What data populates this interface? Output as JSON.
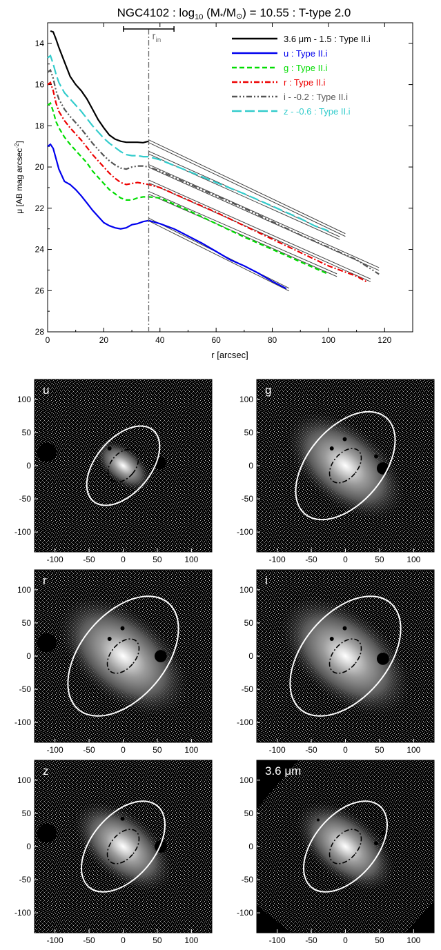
{
  "chart_data": [
    {
      "type": "line",
      "title_parts": {
        "pre": "NGC4102 : log",
        "sub": "10",
        "mid": " (M",
        "star": "*",
        "slash": "/M",
        "sun": "⊙",
        "post": ") = 10.55 : T-type 2.0"
      },
      "xlabel": "r [arcsec]",
      "ylabel": "μ [AB mag arcsec",
      "ylabel_exp": "-2",
      "ylabel_close": "]",
      "xlim": [
        0,
        130
      ],
      "ylim": [
        28,
        13
      ],
      "x_ticks": [
        "0",
        "20",
        "40",
        "60",
        "80",
        "100",
        "120"
      ],
      "y_ticks": [
        "14",
        "16",
        "18",
        "20",
        "22",
        "24",
        "26",
        "28"
      ],
      "rin_label": "r",
      "rin_sub": "in",
      "rin_value": 36,
      "rin_error": [
        27,
        45
      ],
      "legend_position": "top-right",
      "series": [
        {
          "name": "3.6 μm - 1.5 : Type II.i",
          "color": "#000000",
          "dash": "solid",
          "x": [
            1,
            2,
            3,
            4,
            6,
            8,
            10,
            12,
            14,
            16,
            18,
            20,
            22,
            24,
            26,
            28,
            30,
            32,
            34,
            36
          ],
          "y": [
            13.4,
            13.45,
            13.8,
            14.2,
            14.9,
            15.6,
            16.0,
            16.3,
            16.7,
            17.2,
            17.7,
            18.1,
            18.45,
            18.65,
            18.75,
            18.8,
            18.8,
            18.8,
            18.82,
            18.75
          ],
          "fit_x": [
            36,
            106
          ],
          "fit_y": [
            18.75,
            23.3
          ]
        },
        {
          "name": "u : Type II.i",
          "color": "#0000ee",
          "dash": "solid",
          "x": [
            0,
            1,
            2,
            3,
            4,
            6,
            8,
            10,
            12,
            14,
            16,
            18,
            20,
            22,
            24,
            26,
            28,
            30,
            32,
            34,
            36,
            40,
            45,
            50,
            55,
            60,
            65,
            70,
            75,
            80,
            85
          ],
          "y": [
            19.0,
            18.9,
            19.1,
            19.6,
            20.1,
            20.7,
            20.85,
            21.1,
            21.4,
            21.75,
            22.1,
            22.4,
            22.7,
            22.85,
            22.95,
            23.0,
            22.95,
            22.8,
            22.75,
            22.65,
            22.6,
            22.75,
            23.0,
            23.35,
            23.7,
            24.1,
            24.5,
            24.8,
            25.15,
            25.55,
            25.9
          ],
          "fit_x": [
            36,
            86
          ],
          "fit_y": [
            22.55,
            25.95
          ]
        },
        {
          "name": "g : Type II.i",
          "color": "#00dd00",
          "dash": "dash",
          "x": [
            0,
            1,
            2,
            3,
            4,
            6,
            8,
            10,
            12,
            14,
            16,
            18,
            20,
            22,
            24,
            26,
            28,
            30,
            32,
            34,
            36,
            40,
            50,
            60,
            70,
            80,
            90,
            100
          ],
          "y": [
            17.0,
            16.9,
            17.3,
            17.8,
            18.1,
            18.55,
            18.9,
            19.2,
            19.5,
            19.8,
            20.2,
            20.5,
            20.8,
            21.1,
            21.3,
            21.5,
            21.6,
            21.6,
            21.5,
            21.45,
            21.45,
            21.5,
            22.1,
            22.75,
            23.4,
            24.0,
            24.6,
            25.2
          ],
          "fit_x": [
            36,
            103
          ],
          "fit_y": [
            21.25,
            25.25
          ]
        },
        {
          "name": "r : Type II.i",
          "color": "#ee0000",
          "dash": "dashdot",
          "x": [
            0,
            1,
            2,
            3,
            4,
            6,
            8,
            10,
            12,
            14,
            16,
            18,
            20,
            22,
            24,
            26,
            28,
            30,
            32,
            34,
            36,
            40,
            50,
            60,
            70,
            80,
            90,
            100,
            110,
            114
          ],
          "y": [
            16.0,
            15.9,
            16.3,
            16.9,
            17.3,
            17.75,
            18.1,
            18.4,
            18.7,
            19.05,
            19.4,
            19.7,
            20.0,
            20.3,
            20.55,
            20.75,
            20.85,
            20.8,
            20.75,
            20.8,
            20.85,
            21.0,
            21.6,
            22.2,
            22.85,
            23.5,
            24.15,
            24.8,
            25.3,
            25.6
          ],
          "fit_x": [
            36,
            115
          ],
          "fit_y": [
            20.7,
            25.5
          ]
        },
        {
          "name": "i - -0.2 : Type II.i",
          "color": "#555555",
          "dash": "dashdotdot",
          "x": [
            0,
            1,
            2,
            3,
            4,
            6,
            8,
            10,
            12,
            14,
            16,
            18,
            20,
            22,
            24,
            26,
            28,
            30,
            32,
            34,
            36,
            40,
            50,
            60,
            70,
            80,
            90,
            100,
            110,
            118
          ],
          "y": [
            15.4,
            15.3,
            15.7,
            16.3,
            16.7,
            17.2,
            17.55,
            17.85,
            18.15,
            18.5,
            18.85,
            19.15,
            19.45,
            19.7,
            19.9,
            20.05,
            20.1,
            20.0,
            19.95,
            19.95,
            20.0,
            20.2,
            20.8,
            21.4,
            22.0,
            22.65,
            23.3,
            23.9,
            24.5,
            25.2
          ],
          "fit_x": [
            36,
            118
          ],
          "fit_y": [
            19.95,
            24.95
          ]
        },
        {
          "name": "z - -0.6 : Type II.i",
          "color": "#33cccc",
          "dash": "longdash",
          "x": [
            0,
            1,
            2,
            3,
            4,
            6,
            8,
            10,
            12,
            14,
            16,
            18,
            20,
            22,
            24,
            26,
            28,
            30,
            32,
            34,
            36,
            40,
            50,
            60,
            70,
            80,
            90,
            95,
            100
          ],
          "y": [
            14.7,
            14.6,
            15.0,
            15.5,
            15.9,
            16.4,
            16.7,
            17.0,
            17.3,
            17.65,
            18.0,
            18.3,
            18.6,
            18.85,
            19.05,
            19.25,
            19.4,
            19.45,
            19.45,
            19.5,
            19.5,
            19.65,
            20.2,
            20.75,
            21.3,
            21.9,
            22.5,
            22.85,
            23.1
          ],
          "fit_x": [
            36,
            104
          ],
          "fit_y": [
            19.3,
            23.45
          ]
        }
      ]
    },
    {
      "type": "heatmap",
      "panels": [
        {
          "label": "u",
          "outer": {
            "a": 70,
            "b": 40
          },
          "inner": {
            "a": 28,
            "b": 18
          },
          "pa": 40,
          "masks": [
            {
              "x": -112,
              "y": 20,
              "r": 14
            },
            {
              "x": 54,
              "y": 4,
              "r": 9
            },
            {
              "x": -20,
              "y": 26,
              "r": 3
            }
          ]
        },
        {
          "label": "g",
          "outer": {
            "a": 95,
            "b": 55
          },
          "inner": {
            "a": 30,
            "b": 18
          },
          "pa": 40,
          "masks": [
            {
              "x": 55,
              "y": -4,
              "r": 9
            },
            {
              "x": -1,
              "y": 40,
              "r": 3
            },
            {
              "x": -20,
              "y": 26,
              "r": 3
            },
            {
              "x": 45,
              "y": 14,
              "r": 3
            }
          ]
        },
        {
          "label": "r",
          "outer": {
            "a": 105,
            "b": 62
          },
          "inner": {
            "a": 30,
            "b": 18
          },
          "pa": 40,
          "masks": [
            {
              "x": -112,
              "y": 20,
              "r": 14
            },
            {
              "x": 55,
              "y": 0,
              "r": 9
            },
            {
              "x": -1,
              "y": 42,
              "r": 3
            },
            {
              "x": -20,
              "y": 26,
              "r": 3
            }
          ]
        },
        {
          "label": "i",
          "outer": {
            "a": 105,
            "b": 62
          },
          "inner": {
            "a": 30,
            "b": 18
          },
          "pa": 40,
          "masks": [
            {
              "x": 55,
              "y": -4,
              "r": 9
            },
            {
              "x": -1,
              "y": 42,
              "r": 3
            },
            {
              "x": -20,
              "y": 26,
              "r": 3
            }
          ]
        },
        {
          "label": "z",
          "outer": {
            "a": 80,
            "b": 46
          },
          "inner": {
            "a": 30,
            "b": 18
          },
          "pa": 40,
          "masks": [
            {
              "x": -112,
              "y": 20,
              "r": 14
            },
            {
              "x": 55,
              "y": 0,
              "r": 9
            },
            {
              "x": -1,
              "y": 42,
              "r": 3
            }
          ]
        },
        {
          "label": "3.6 μm",
          "outer": {
            "a": 80,
            "b": 46
          },
          "inner": {
            "a": 30,
            "b": 18
          },
          "pa": 40,
          "masks": [
            {
              "x": 45,
              "y": 5,
              "r": 3
            },
            {
              "x": 55,
              "y": 20,
              "r": 3
            },
            {
              "x": -40,
              "y": 40,
              "r": 2
            }
          ]
        }
      ],
      "x_ticks": [
        "-100",
        "-50",
        "0",
        "50",
        "100"
      ],
      "y_ticks": [
        "100",
        "50",
        "0",
        "-50",
        "-100"
      ],
      "range": [
        -130,
        130
      ]
    }
  ]
}
